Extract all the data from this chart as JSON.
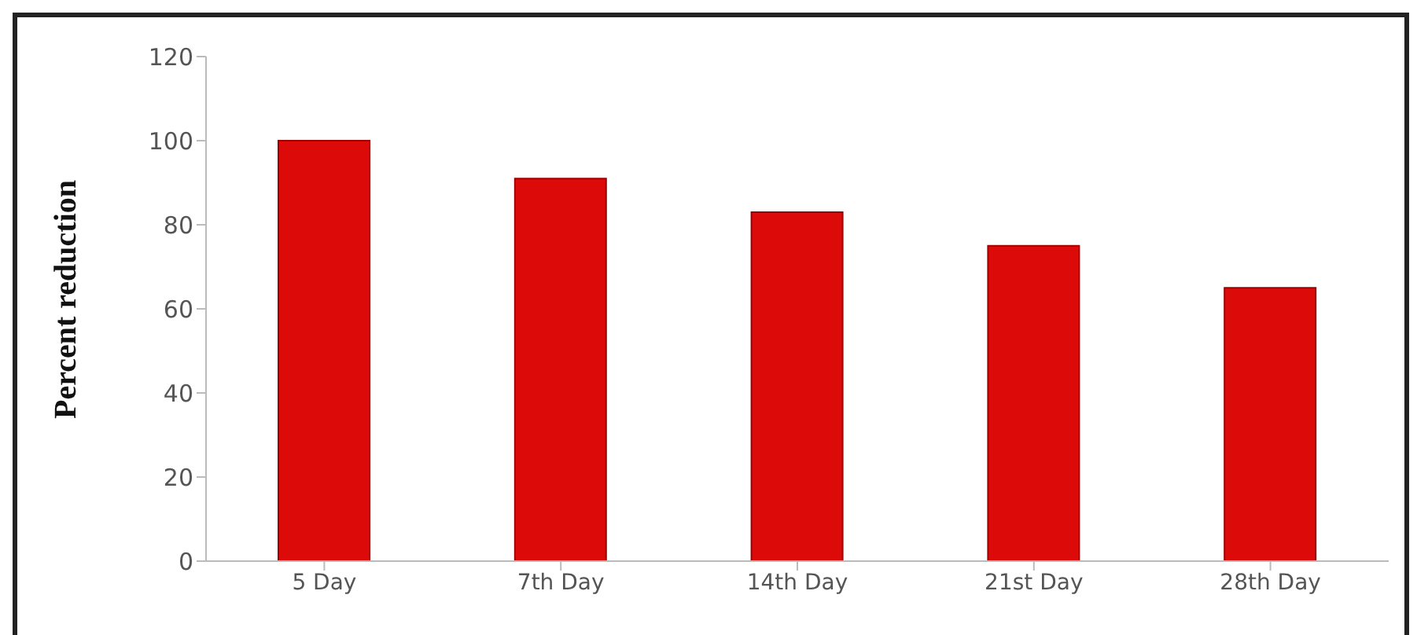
{
  "chart_data": {
    "type": "bar",
    "ylabel": "Percent reduction",
    "categories": [
      "5 Day",
      "7th Day",
      "14th Day",
      "21st Day",
      "28th Day"
    ],
    "values": [
      100,
      91,
      83,
      75,
      65
    ],
    "color": "#dd0a0a",
    "ylim": [
      0,
      120
    ],
    "yticks": [
      0,
      20,
      40,
      60,
      80,
      100,
      120
    ],
    "grid": false
  }
}
